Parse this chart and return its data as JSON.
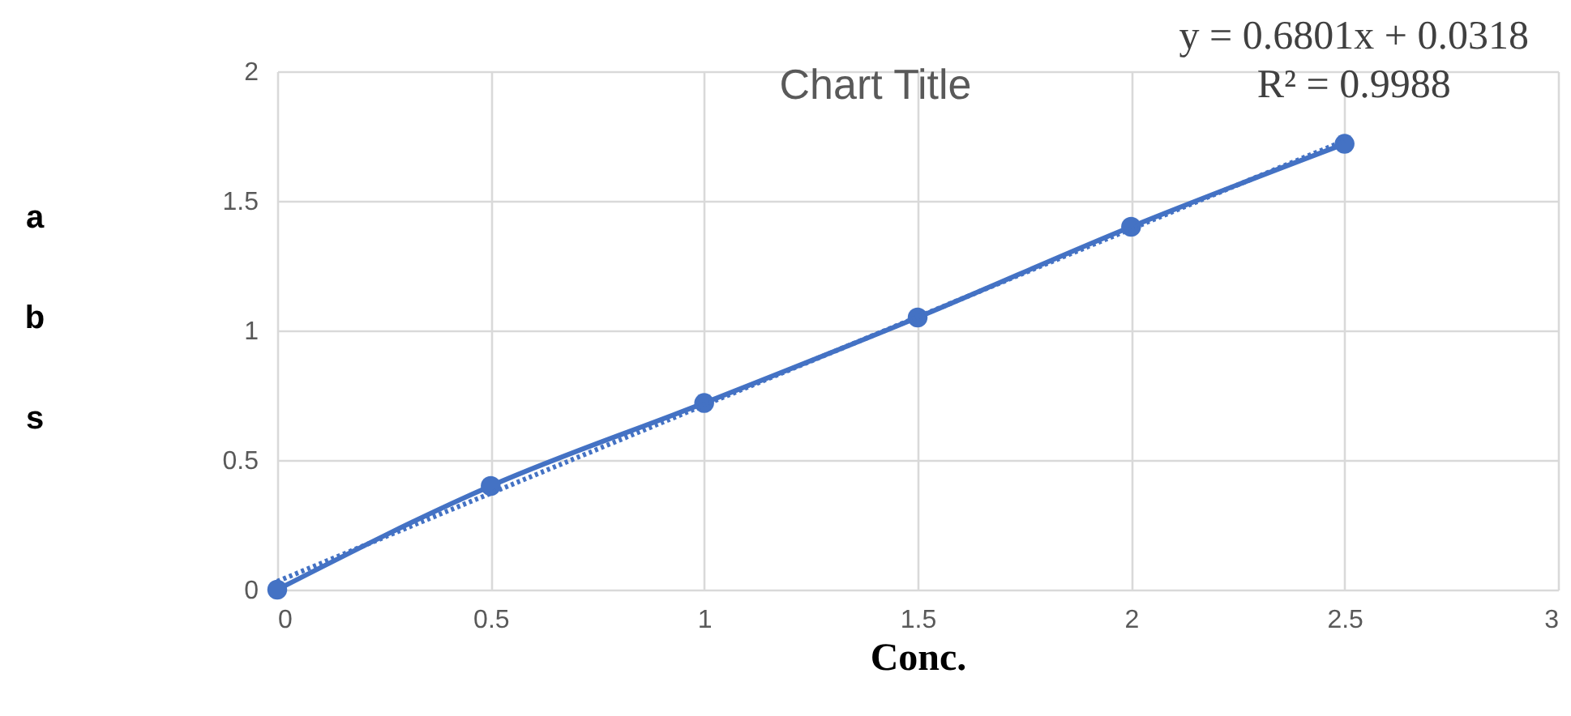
{
  "chart_data": {
    "type": "line",
    "title": "Chart Title",
    "xlabel": "Conc.",
    "ylabel": "abs",
    "x": [
      0,
      0.5,
      1,
      1.5,
      2,
      2.5
    ],
    "series": [
      {
        "color": "#4472c4",
        "values": [
          0,
          0.4,
          0.72,
          1.05,
          1.4,
          1.72
        ],
        "marker": "circle",
        "line_style": "solid"
      },
      {
        "type": "line",
        "color": "#4472c4",
        "x": [
          0,
          2.5
        ],
        "values": [
          0.0318,
          1.732
        ],
        "marker": "none",
        "line_style": "dotted"
      }
    ],
    "annotations": [
      "y = 0.6801x + 0.0318",
      "R² = 0.9988"
    ],
    "xlim": [
      0,
      3
    ],
    "xticks": [
      0,
      0.5,
      1,
      1.5,
      2,
      2.5,
      3
    ],
    "ylim": [
      0,
      2
    ],
    "yticks": [
      0,
      0.5,
      1,
      1.5,
      2
    ],
    "grid": true
  }
}
